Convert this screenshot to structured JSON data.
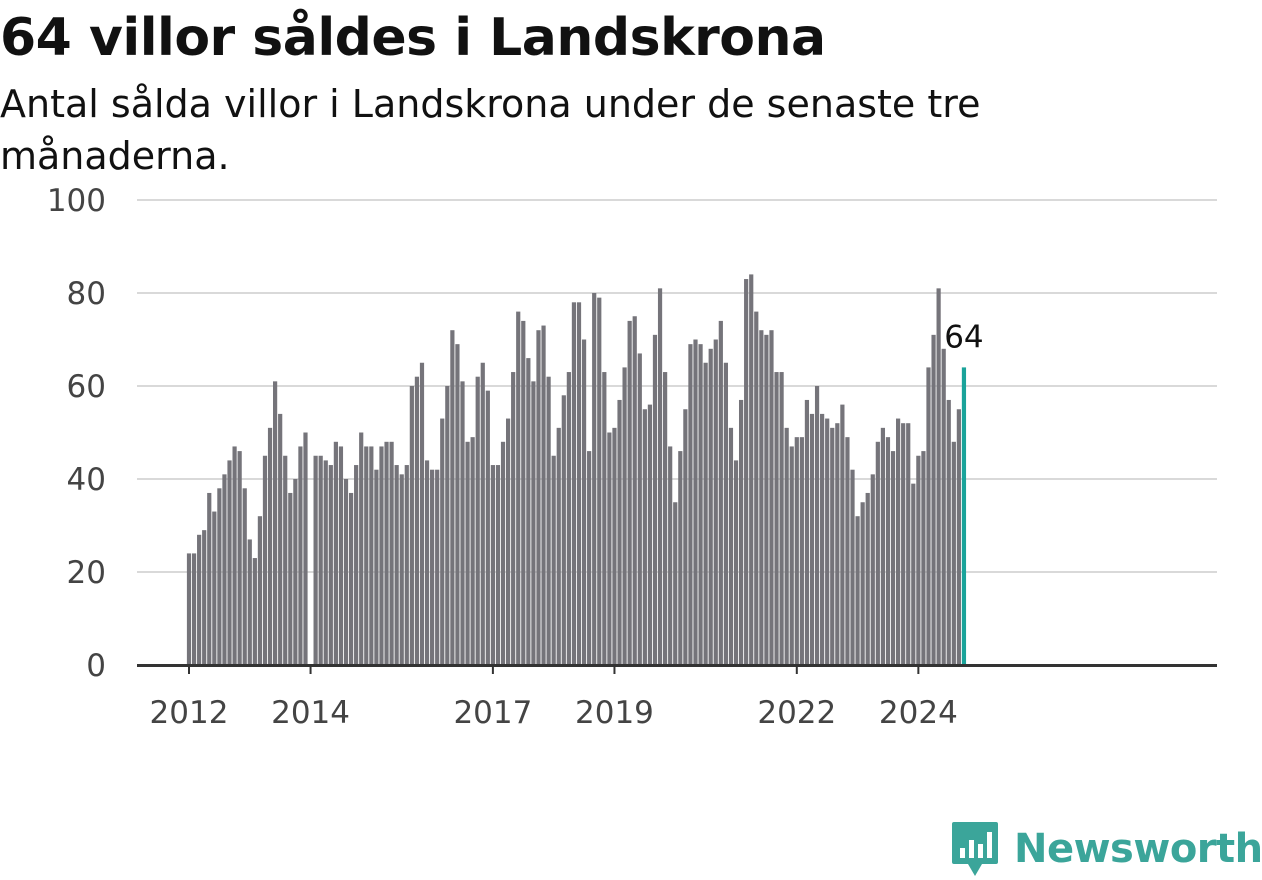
{
  "title": "64 villor såldes i Landskrona",
  "subtitle": "Antal sålda villor i Landskrona under de senaste tre månaderna.",
  "brand": "Newsworthy",
  "colors": {
    "bar": "#75747a",
    "highlight": "#1aa39a",
    "grid": "#d9d9d9",
    "axis": "#333333",
    "brand": "#3ba59a"
  },
  "chart_data": {
    "type": "bar",
    "title": "64 villor såldes i Landskrona",
    "subtitle": "Antal sålda villor i Landskrona under de senaste tre månaderna.",
    "ylim": [
      0,
      100
    ],
    "yticks": [
      0,
      20,
      40,
      60,
      80,
      100
    ],
    "xticks": [
      {
        "label": "2012",
        "index": 0
      },
      {
        "label": "2014",
        "index": 24
      },
      {
        "label": "2017",
        "index": 60
      },
      {
        "label": "2019",
        "index": 84
      },
      {
        "label": "2022",
        "index": 120
      },
      {
        "label": "2024",
        "index": 144
      }
    ],
    "grid": true,
    "highlight_last": true,
    "last_label": "64",
    "values": [
      24,
      24,
      28,
      29,
      37,
      33,
      38,
      41,
      44,
      47,
      46,
      38,
      27,
      23,
      32,
      45,
      51,
      61,
      54,
      45,
      37,
      40,
      47,
      50,
      0,
      45,
      45,
      44,
      43,
      48,
      47,
      40,
      37,
      43,
      50,
      47,
      47,
      42,
      47,
      48,
      48,
      43,
      41,
      43,
      60,
      62,
      65,
      44,
      42,
      42,
      53,
      60,
      72,
      69,
      61,
      48,
      49,
      62,
      65,
      59,
      43,
      43,
      48,
      53,
      63,
      76,
      74,
      66,
      61,
      72,
      73,
      62,
      45,
      51,
      58,
      63,
      78,
      78,
      70,
      46,
      80,
      79,
      63,
      50,
      51,
      57,
      64,
      74,
      75,
      67,
      55,
      56,
      71,
      81,
      63,
      47,
      35,
      46,
      55,
      69,
      70,
      69,
      65,
      68,
      70,
      74,
      65,
      51,
      44,
      57,
      83,
      84,
      76,
      72,
      71,
      72,
      63,
      63,
      51,
      47,
      49,
      49,
      57,
      54,
      60,
      54,
      53,
      51,
      52,
      56,
      49,
      42,
      32,
      35,
      37,
      41,
      48,
      51,
      49,
      46,
      53,
      52,
      52,
      39,
      45,
      46,
      64,
      71,
      81,
      68,
      57,
      48,
      55,
      64
    ]
  }
}
